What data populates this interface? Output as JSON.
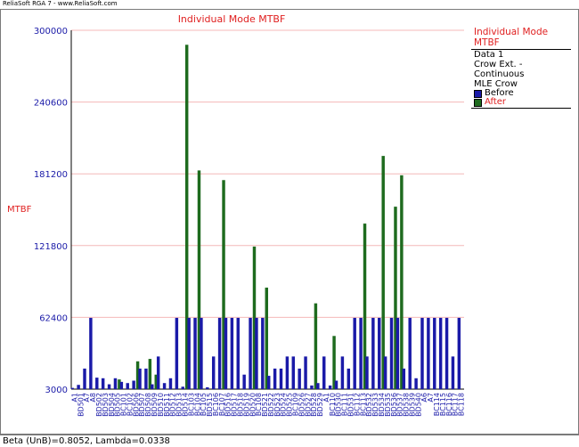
{
  "window_title": "ReliaSoft RGA 7 - www.ReliaSoft.com",
  "status_text": "Beta (UnB)=0.8052, Lambda=0.0338",
  "legend": {
    "title": "Individual Mode MTBF",
    "lines": [
      "Data 1",
      "Crow Ext. - Continuous",
      "MLE Crow"
    ],
    "items": [
      {
        "label": "Before",
        "color": "#1a1aa8"
      },
      {
        "label": "After",
        "color": "#1e6b1e"
      }
    ]
  },
  "colors": {
    "before": "#1a1aa8",
    "after": "#1e6b1e",
    "title": "#e02020",
    "axis_text": "#1a1aa8",
    "grid": "#f4b8b8"
  },
  "chart_data": {
    "type": "bar",
    "title": "Individual Mode MTBF",
    "xlabel": "",
    "ylabel": "MTBF",
    "ylim": [
      3000,
      300000
    ],
    "yticks": [
      3000,
      62400,
      121800,
      181200,
      240600,
      300000
    ],
    "grid": true,
    "legend_position": "right",
    "categories": [
      "A1",
      "BD501",
      "A7",
      "A8",
      "BD502",
      "BD503",
      "BD504",
      "BD505",
      "BC101",
      "BC102",
      "BD506",
      "BD507",
      "BD508",
      "BD509",
      "BD510",
      "BD511",
      "BD512",
      "BD513",
      "BD514",
      "BC103",
      "BC104",
      "BC105",
      "BD515",
      "BC106",
      "BC107",
      "BD516",
      "BD517",
      "BD518",
      "BD519",
      "BD520",
      "BC108",
      "BD521",
      "BD522",
      "BD523",
      "BD524",
      "BD525",
      "BC109",
      "BD526",
      "BD527",
      "BD528",
      "BD529",
      "A1",
      "BC110",
      "BD530",
      "BC111",
      "BD531",
      "BC112",
      "BC113",
      "BD532",
      "BD533",
      "BD534",
      "BD535",
      "BD536",
      "BD537",
      "BD538",
      "BD539",
      "BD540",
      "A6",
      "A7",
      "BC114",
      "BC115",
      "BC116",
      "BC117",
      "BC118"
    ],
    "series": [
      {
        "name": "Before",
        "values": [
          4000,
          6500,
          20000,
          62000,
          12500,
          12000,
          7000,
          12000,
          9000,
          8000,
          10000,
          20000,
          20000,
          7000,
          30000,
          8000,
          12000,
          62000,
          5000,
          62000,
          62000,
          62000,
          4500,
          30000,
          62000,
          62000,
          62000,
          62000,
          15000,
          62000,
          62000,
          62000,
          14000,
          20000,
          20000,
          30000,
          30000,
          20000,
          30000,
          6000,
          8000,
          30000,
          6000,
          10000,
          30000,
          20000,
          62000,
          62000,
          30000,
          62000,
          62000,
          30000,
          62000,
          62000,
          20000,
          62000,
          12000,
          62000,
          62000,
          62000,
          62000,
          62000,
          30000,
          62000
        ]
      },
      {
        "name": "After",
        "values": [
          0,
          0,
          0,
          0,
          0,
          0,
          0,
          11000,
          0,
          0,
          26000,
          0,
          28000,
          15000,
          0,
          0,
          0,
          0,
          288000,
          0,
          184000,
          0,
          0,
          0,
          176000,
          0,
          0,
          0,
          0,
          121000,
          0,
          87000,
          0,
          0,
          0,
          0,
          0,
          0,
          0,
          74000,
          0,
          0,
          47000,
          0,
          0,
          0,
          0,
          140000,
          0,
          0,
          196000,
          0,
          154000,
          180000,
          0,
          0,
          0,
          0,
          0,
          0,
          0,
          0,
          0,
          0
        ]
      }
    ]
  }
}
